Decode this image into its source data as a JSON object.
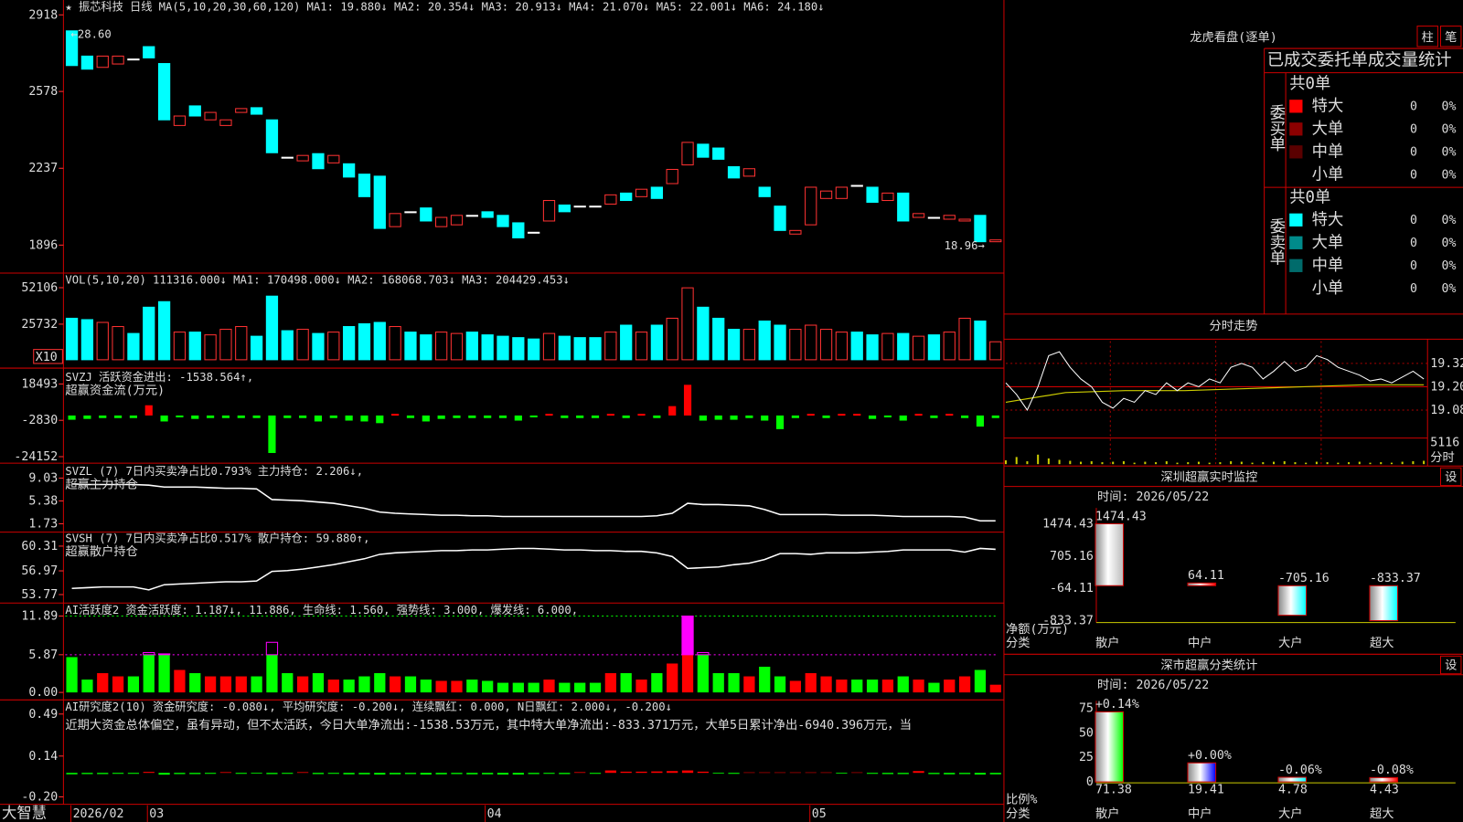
{
  "app_name": "大智慧",
  "kline": {
    "header": [
      {
        "text": "★",
        "color": "#ffffff"
      },
      {
        "text": "振芯科技",
        "color": "#ffffff"
      },
      {
        "text": "日线",
        "color": "#ff3232"
      },
      {
        "text": "MA(5,10,20,30,60,120)",
        "color": "#ffffff"
      },
      {
        "text": "MA1: 19.880",
        "color": "#ffffff"
      },
      {
        "text": "↓",
        "color": "#00ff00"
      },
      {
        "text": "MA2: 20.354",
        "color": "#ffff00"
      },
      {
        "text": "↓",
        "color": "#00ff00"
      },
      {
        "text": "MA3: 20.913",
        "color": "#ff00ff"
      },
      {
        "text": "↓",
        "color": "#00ff00"
      },
      {
        "text": "MA4: 21.070",
        "color": "#00ff00"
      },
      {
        "text": "↓",
        "color": "#00ff00"
      },
      {
        "text": "MA5: 22.001",
        "color": "#ffffff"
      },
      {
        "text": "↓",
        "color": "#00ff00"
      },
      {
        "text": "MA6: 24.180",
        "color": "#3232ff"
      },
      {
        "text": "↓",
        "color": "#00ff00"
      }
    ],
    "high_label": "←28.60",
    "last_label": "18.96→",
    "ylim": [
      1776,
      2984
    ],
    "yticks": [
      2918,
      2578,
      2237,
      1896
    ],
    "up_color": "#ff3232",
    "down_color": "#00ffff",
    "open": [
      2847,
      2735,
      2685,
      2700,
      2722,
      2777,
      2702,
      2427,
      2514,
      2452,
      2427,
      2485,
      2506,
      2452,
      2286,
      2270,
      2302,
      2261,
      2257,
      2211,
      2202,
      1978,
      2044,
      2061,
      1978,
      1986,
      2028,
      2044,
      2028,
      1995,
      1953,
      2003,
      2074,
      2069,
      2069,
      2078,
      2127,
      2111,
      2153,
      2169,
      2252,
      2344,
      2327,
      2244,
      2202,
      2153,
      2069,
      1945,
      1986,
      2103,
      2103,
      2161,
      2153,
      2094,
      2127,
      2019,
      2019,
      2011,
      2003,
      2028,
      1911
    ],
    "close": [
      2693,
      2677,
      2735,
      2735,
      2722,
      2727,
      2452,
      2469,
      2469,
      2485,
      2452,
      2502,
      2477,
      2306,
      2286,
      2294,
      2235,
      2294,
      2198,
      2111,
      1970,
      2036,
      2044,
      2003,
      2019,
      2028,
      2028,
      2019,
      1978,
      1928,
      1953,
      2094,
      2044,
      2069,
      2069,
      2119,
      2094,
      2144,
      2103,
      2232,
      2352,
      2286,
      2277,
      2194,
      2235,
      2111,
      1961,
      1961,
      2153,
      2136,
      2153,
      2161,
      2086,
      2127,
      2003,
      2036,
      2019,
      2028,
      2011,
      1911,
      1919
    ]
  },
  "volume": {
    "header": [
      {
        "text": "VOL(5,10,20)",
        "color": "#ffffff"
      },
      {
        "text": "111316.000",
        "color": "#ffffff"
      },
      {
        "text": "↓",
        "color": "#00ff00"
      },
      {
        "text": "MA1: 170498.000",
        "color": "#ffff00"
      },
      {
        "text": "↓",
        "color": "#00ff00"
      },
      {
        "text": "MA2: 168068.703",
        "color": "#ff00ff"
      },
      {
        "text": "↓",
        "color": "#00ff00"
      },
      {
        "text": "MA3: 204429.453",
        "color": "#00ff00"
      },
      {
        "text": "↓",
        "color": "#00ff00"
      }
    ],
    "unit": "X10",
    "ylim": [
      0,
      62000
    ],
    "yticks": [
      52106,
      25732
    ],
    "values": [
      30000,
      29000,
      27000,
      24000,
      19000,
      38000,
      42000,
      20000,
      20000,
      18000,
      22000,
      24000,
      17000,
      46000,
      21000,
      22000,
      19000,
      20000,
      24000,
      26000,
      27000,
      24000,
      20000,
      18000,
      20000,
      19000,
      20000,
      18000,
      17000,
      16000,
      15000,
      19000,
      17000,
      16000,
      16000,
      20000,
      25000,
      20000,
      25000,
      30000,
      52000,
      38000,
      30000,
      22000,
      22000,
      28000,
      25000,
      22000,
      25000,
      22000,
      20000,
      20000,
      18000,
      19000,
      19000,
      17000,
      18000,
      20000,
      30000,
      28000,
      13000
    ]
  },
  "svzj": {
    "header": [
      {
        "text": "SVZJ",
        "color": "#ffffff"
      },
      {
        "text": "活跃资金进出: -1538.564",
        "color": "#ffffff"
      },
      {
        "text": "↑",
        "color": "#ff3232"
      },
      {
        "text": ",",
        "color": "#ffffff"
      }
    ],
    "subtitle": "超赢资金流(万元)",
    "ylim": [
      -27979,
      27240
    ],
    "yticks": [
      18493,
      -2830,
      -24152
    ],
    "values": [
      -2500,
      -2000,
      -1500,
      -1500,
      -1500,
      6000,
      -3500,
      -1000,
      -2000,
      -1500,
      -1500,
      -1500,
      -1500,
      -22000,
      -1500,
      -1500,
      -3500,
      -1500,
      -3000,
      -3500,
      -4500,
      1000,
      -1500,
      -3500,
      -2000,
      -1500,
      -1500,
      -1500,
      -1500,
      -3000,
      -1000,
      1000,
      -1500,
      -1500,
      -1500,
      1000,
      -1500,
      1000,
      -1500,
      5500,
      18000,
      -3000,
      -2500,
      -2500,
      -1500,
      -3000,
      -8000,
      -1500,
      1000,
      -1500,
      1000,
      1000,
      -2000,
      -1000,
      -3000,
      1000,
      -1500,
      1000,
      -1500,
      -6500,
      -1500
    ]
  },
  "svzl": {
    "header": [
      {
        "text": "SVZL (7)",
        "color": "#ffffff"
      },
      {
        "text": "7日内买卖净占比0.793%",
        "color": "#00ff00"
      },
      {
        "text": "主力持仓: 2.206",
        "color": "#ffffff"
      },
      {
        "text": "↓",
        "color": "#00ff00"
      },
      {
        "text": ",",
        "color": "#ffffff"
      }
    ],
    "subtitle": "超赢主力持仓",
    "ylim": [
      0.54,
      11.26
    ],
    "yticks": [
      9.03,
      5.38,
      1.73
    ],
    "values": [
      8.1,
      8.0,
      8.0,
      8.0,
      8.0,
      7.9,
      7.6,
      7.6,
      7.6,
      7.5,
      7.4,
      7.4,
      7.3,
      5.6,
      5.5,
      5.4,
      5.2,
      5.0,
      4.6,
      4.2,
      3.6,
      3.4,
      3.3,
      3.2,
      3.1,
      3.1,
      3.0,
      3.0,
      2.9,
      2.9,
      2.9,
      2.9,
      2.9,
      2.9,
      2.9,
      2.9,
      2.9,
      2.9,
      3.0,
      3.4,
      5.0,
      4.8,
      4.8,
      4.7,
      4.6,
      4.0,
      3.2,
      3.2,
      3.2,
      3.2,
      3.1,
      3.1,
      3.1,
      3.0,
      2.9,
      2.9,
      2.9,
      2.9,
      2.8,
      2.2,
      2.2
    ]
  },
  "svsh": {
    "header": [
      {
        "text": "SVSH (7)",
        "color": "#ffffff"
      },
      {
        "text": "7日内买卖净占比0.517%",
        "color": "#ff3232"
      },
      {
        "text": "散户持仓: 59.880",
        "color": "#ffffff"
      },
      {
        "text": "↑",
        "color": "#ff3232"
      },
      {
        "text": ",",
        "color": "#ffffff"
      }
    ],
    "subtitle": "超赢散户持仓",
    "ylim": [
      52.76,
      62.07
    ],
    "yticks": [
      60.31,
      56.97,
      53.77
    ],
    "values": [
      54.6,
      54.7,
      54.8,
      54.8,
      54.8,
      54.4,
      55.1,
      55.2,
      55.3,
      55.4,
      55.5,
      55.5,
      55.6,
      56.9,
      57.0,
      57.2,
      57.5,
      57.8,
      58.2,
      58.6,
      59.2,
      59.4,
      59.5,
      59.6,
      59.7,
      59.7,
      59.8,
      59.8,
      59.9,
      60.0,
      60.0,
      59.9,
      59.8,
      59.8,
      59.7,
      59.7,
      59.6,
      59.6,
      59.4,
      58.9,
      57.3,
      57.4,
      57.5,
      57.8,
      58.0,
      58.5,
      59.3,
      59.3,
      59.2,
      59.4,
      59.4,
      59.4,
      59.5,
      59.6,
      59.8,
      59.8,
      59.8,
      59.8,
      59.5,
      60.0,
      59.88
    ]
  },
  "ai_activity": {
    "header": [
      {
        "text": "AI活跃度2",
        "color": "#ffffff"
      },
      {
        "text": "资金活跃度: 1.187",
        "color": "#ffffff"
      },
      {
        "text": "↓",
        "color": "#00ff00"
      },
      {
        "text": ", 11.886,",
        "color": "#ffffff"
      },
      {
        "text": "生命线: 1.560,",
        "color": "#ffffff"
      },
      {
        "text": "强势线: 3.000,",
        "color": "#ff3232"
      },
      {
        "text": "爆发线: 6.000,",
        "color": "#ff00ff"
      }
    ],
    "ylim": [
      -1.02,
      13.78
    ],
    "yticks": [
      11.89,
      5.87,
      {
        "value": 0,
        "label": "0.00"
      }
    ],
    "values": [
      5.5,
      2.0,
      3.0,
      2.5,
      2.5,
      6.2,
      6.0,
      3.5,
      3.0,
      2.5,
      2.5,
      2.5,
      2.5,
      7.8,
      3.0,
      2.5,
      3.0,
      2.0,
      2.0,
      2.5,
      3.0,
      2.5,
      2.5,
      2.0,
      1.8,
      1.8,
      2.0,
      1.8,
      1.5,
      1.5,
      1.5,
      2.0,
      1.5,
      1.5,
      1.5,
      3.0,
      3.0,
      2.0,
      3.0,
      4.5,
      11.89,
      6.2,
      3.0,
      3.0,
      2.5,
      4.0,
      2.5,
      1.8,
      3.0,
      2.5,
      2.0,
      2.0,
      2.0,
      2.0,
      2.5,
      2.0,
      1.5,
      2.0,
      2.5,
      3.5,
      1.2
    ]
  },
  "ai_research": {
    "header": [
      {
        "text": "AI研究度2(10)",
        "color": "#ffffff"
      },
      {
        "text": "资金研究度: -0.080",
        "color": "#ffffff"
      },
      {
        "text": "↓",
        "color": "#00ff00"
      },
      {
        "text": ",",
        "color": "#ffffff"
      },
      {
        "text": "平均研究度: -0.200",
        "color": "#ffff00"
      },
      {
        "text": "↓",
        "color": "#00ff00"
      },
      {
        "text": ",",
        "color": "#ffffff"
      },
      {
        "text": "连续飘红: 0.000,",
        "color": "#ff00ff"
      },
      {
        "text": "N日飘红: 2.000",
        "color": "#ffffff"
      },
      {
        "text": "↓",
        "color": "#00ff00"
      },
      {
        "text": ",",
        "color": "#ffffff"
      },
      {
        "text": "-0.200",
        "color": "#3232ff"
      },
      {
        "text": "↓",
        "color": "#00ff00"
      }
    ],
    "comment": "近期大资金总体偏空，虽有异动，但不太活跃，今日大单净流出:-1538.53万元，其中特大单净流出:-833.371万元，大单5日累计净出-6940.396万元，当",
    "ylim": [
      -0.254,
      0.6
    ],
    "yticks": [
      0.49,
      0.14,
      {
        "value": -0.2,
        "label": "-0.20"
      }
    ],
    "values": [
      -0.012,
      -0.01,
      -0.01,
      -0.008,
      -0.008,
      0.008,
      -0.015,
      -0.01,
      -0.01,
      -0.008,
      0.006,
      -0.008,
      -0.006,
      -0.01,
      -0.008,
      0.006,
      -0.01,
      -0.008,
      -0.012,
      -0.012,
      -0.014,
      -0.012,
      -0.01,
      -0.014,
      -0.012,
      -0.01,
      -0.012,
      -0.012,
      -0.014,
      -0.014,
      -0.01,
      -0.008,
      -0.01,
      0.006,
      -0.008,
      0.02,
      0.01,
      0.01,
      0.012,
      0.015,
      0.02,
      0.01,
      -0.006,
      -0.008,
      0.004,
      0.004,
      0.004,
      0.004,
      0.004,
      0.004,
      -0.006,
      0.004,
      -0.008,
      -0.01,
      -0.01,
      0.015,
      -0.01,
      -0.012,
      -0.01,
      -0.014,
      -0.012
    ]
  },
  "x_axis_labels": [
    "2026/02",
    "03",
    "04",
    "05"
  ],
  "order_panel": {
    "title": "龙虎看盘(逐单)",
    "buttons": [
      "柱",
      "笔"
    ],
    "heading": "已成交委托单成交量统计",
    "buy": {
      "label": "委买单",
      "total": "共0单",
      "rows": [
        {
          "name": "特大",
          "swatch": "#ff0000",
          "count": 0,
          "pct": "0%"
        },
        {
          "name": "大单",
          "swatch": "#8b0000",
          "count": 0,
          "pct": "0%"
        },
        {
          "name": "中单",
          "swatch": "#5a0000",
          "count": 0,
          "pct": "0%"
        },
        {
          "name": "小单",
          "count": 0,
          "pct": "0%"
        }
      ]
    },
    "sell": {
      "label": "委卖单",
      "total": "共0单",
      "rows": [
        {
          "name": "特大",
          "swatch": "#00ffff",
          "count": 0,
          "pct": "0%"
        },
        {
          "name": "大单",
          "swatch": "#008b8b",
          "count": 0,
          "pct": "0%"
        },
        {
          "name": "中单",
          "swatch": "#006b6b",
          "count": 0,
          "pct": "0%"
        },
        {
          "name": "小单",
          "count": 0,
          "pct": "0%"
        }
      ]
    }
  },
  "intraday": {
    "title": "分时走势",
    "ylim": [
      18.936,
      19.435
    ],
    "yticks": [
      19.32,
      {
        "value": 19.2,
        "label": "19.20"
      },
      19.08
    ],
    "price": [
      19.22,
      19.16,
      19.08,
      19.2,
      19.36,
      19.38,
      19.3,
      19.24,
      19.2,
      19.12,
      19.09,
      19.14,
      19.12,
      19.18,
      19.16,
      19.22,
      19.18,
      19.22,
      19.2,
      19.24,
      19.22,
      19.3,
      19.32,
      19.3,
      19.24,
      19.28,
      19.33,
      19.28,
      19.3,
      19.36,
      19.34,
      19.3,
      19.28,
      19.26,
      19.23,
      19.24,
      19.22,
      19.25,
      19.28,
      19.24
    ],
    "average": [
      19.12,
      19.17,
      19.18,
      19.18,
      19.19,
      19.2,
      19.21,
      19.21
    ],
    "volume": [
      800,
      1500,
      600,
      2000,
      1200,
      900,
      700,
      500,
      600,
      400,
      500,
      600,
      300,
      500,
      400,
      600,
      300,
      400,
      500,
      300,
      400,
      600,
      500,
      300,
      400,
      500,
      600,
      400,
      300,
      500,
      400,
      300,
      400,
      500,
      300,
      400,
      300,
      500,
      600,
      700
    ],
    "vol_ylim": [
      0,
      5116
    ],
    "vol_ticks": [
      5116
    ],
    "vol_label": "分时"
  },
  "shenzhen_monitor": {
    "title": "深圳超赢实时监控",
    "button": "设",
    "time": "时间: 2026/05/22",
    "y_label": "净额(万元)",
    "x_label": "分类",
    "categories": [
      "散户",
      "中户",
      "大户",
      "超大"
    ],
    "values": [
      1474.43,
      64.11,
      -705.16,
      -833.37
    ],
    "colors": [
      "#bbbbbb",
      "#ff0000",
      "#00ffff",
      "#00ffff"
    ],
    "ylim": [
      -877.8,
      1851.7
    ],
    "yticks": [
      1474.43,
      705.16,
      -64.11,
      -833.37
    ]
  },
  "shenzhen_ratio": {
    "title": "深市超赢分类统计",
    "button": "设",
    "time": "时间: 2026/05/22",
    "y_label": "比例%",
    "x_label": "分类",
    "categories": [
      "散户",
      "中户",
      "大户",
      "超大"
    ],
    "values": [
      71.38,
      19.41,
      4.78,
      4.43
    ],
    "changes": [
      "+0.14%",
      "+0.00%",
      "-0.06%",
      "-0.08%"
    ],
    "colors": [
      "#00ff00",
      "#0000ff",
      "#00ffff",
      "#ff0000"
    ],
    "ylim": [
      0,
      82.6
    ],
    "yticks": [
      75,
      50,
      25,
      0
    ]
  }
}
